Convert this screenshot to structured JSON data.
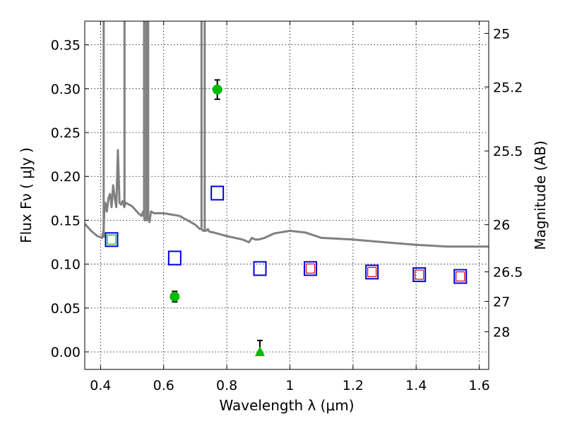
{
  "chart_data": {
    "type": "scatter",
    "xlabel": "Wavelength  λ (μm)",
    "ylabel_left": "Flux  Fν  ( μJy )",
    "ylabel_right": "Magnitude (AB)",
    "xlim": [
      0.35,
      1.63
    ],
    "ylim": [
      -0.02,
      0.377
    ],
    "xticks": [
      0.4,
      0.6,
      0.8,
      1.0,
      1.2,
      1.4,
      1.6
    ],
    "xtick_labels": [
      "0.4",
      "0.6",
      "0.8",
      "1",
      "1.2",
      "1.4",
      "1.6"
    ],
    "yticks": [
      0.0,
      0.05,
      0.1,
      0.15,
      0.2,
      0.25,
      0.3,
      0.35
    ],
    "ytick_labels": [
      "0.00",
      "0.05",
      "0.10",
      "0.15",
      "0.20",
      "0.25",
      "0.30",
      "0.35"
    ],
    "right_ticks": [
      {
        "label": "25",
        "flux": 0.363
      },
      {
        "label": "25.2",
        "flux": 0.302
      },
      {
        "label": "25.5",
        "flux": 0.229
      },
      {
        "label": "26",
        "flux": 0.145
      },
      {
        "label": "26.5",
        "flux": 0.0912
      },
      {
        "label": "27",
        "flux": 0.0575
      },
      {
        "label": "28",
        "flux": 0.0229
      }
    ],
    "grid": true,
    "colors": {
      "sed": "#808080",
      "detection": "#00bb00",
      "model_square": "#0000dd",
      "inner_red": "#dd0000",
      "inner_green": "#00bb00"
    },
    "series": [
      {
        "name": "Model SED",
        "style": "line",
        "x": [
          0.35,
          0.37,
          0.39,
          0.405,
          0.41,
          0.412,
          0.415,
          0.42,
          0.425,
          0.43,
          0.435,
          0.44,
          0.445,
          0.45,
          0.455,
          0.46,
          0.465,
          0.47,
          0.475,
          0.48,
          0.49,
          0.5,
          0.51,
          0.52,
          0.53,
          0.535,
          0.54,
          0.545,
          0.55,
          0.555,
          0.56,
          0.57,
          0.6,
          0.65,
          0.7,
          0.715,
          0.72,
          0.725,
          0.73,
          0.735,
          0.74,
          0.745,
          0.76,
          0.8,
          0.85,
          0.87,
          0.88,
          0.89,
          0.9,
          0.92,
          0.95,
          1.0,
          1.05,
          1.1,
          1.2,
          1.3,
          1.4,
          1.5,
          1.55,
          1.6,
          1.63
        ],
        "y": [
          0.146,
          0.138,
          0.132,
          0.13,
          0.14,
          0.16,
          0.17,
          0.16,
          0.175,
          0.18,
          0.165,
          0.19,
          0.175,
          0.165,
          0.23,
          0.17,
          0.168,
          0.172,
          0.165,
          0.17,
          0.168,
          0.166,
          0.162,
          0.158,
          0.155,
          0.16,
          0.15,
          0.15,
          0.152,
          0.148,
          0.16,
          0.158,
          0.158,
          0.155,
          0.145,
          0.14,
          0.14,
          0.138,
          0.138,
          0.138,
          0.14,
          0.137,
          0.136,
          0.132,
          0.128,
          0.125,
          0.13,
          0.128,
          0.128,
          0.13,
          0.135,
          0.138,
          0.136,
          0.13,
          0.128,
          0.125,
          0.122,
          0.12,
          0.12,
          0.12,
          0.12
        ]
      },
      {
        "name": "Emission lines",
        "style": "vlines",
        "x": [
          0.41,
          0.476,
          0.538,
          0.545,
          0.551,
          0.72,
          0.73
        ],
        "y_base": [
          0.13,
          0.165,
          0.155,
          0.15,
          0.152,
          0.14,
          0.138
        ]
      },
      {
        "name": "Detections",
        "style": "circle",
        "x": [
          0.635,
          0.77
        ],
        "y": [
          0.063,
          0.299
        ],
        "yerr": [
          0.006,
          0.011
        ]
      },
      {
        "name": "Upper limit",
        "style": "triangle",
        "x": [
          0.905
        ],
        "y": [
          0.0
        ],
        "yerr": [
          0.013
        ]
      },
      {
        "name": "Model photometry",
        "style": "square",
        "x": [
          0.435,
          0.635,
          0.77,
          0.905,
          1.065,
          1.26,
          1.41,
          1.54
        ],
        "y": [
          0.128,
          0.107,
          0.181,
          0.095,
          0.095,
          0.091,
          0.088,
          0.086
        ]
      },
      {
        "name": "Inner markers",
        "style": "small-square",
        "x": [
          0.435,
          1.065,
          1.26,
          1.41,
          1.54
        ],
        "y": [
          0.128,
          0.095,
          0.091,
          0.088,
          0.086
        ],
        "colors": [
          "inner_green",
          "inner_red",
          "inner_red",
          "inner_red",
          "inner_red"
        ]
      }
    ]
  }
}
